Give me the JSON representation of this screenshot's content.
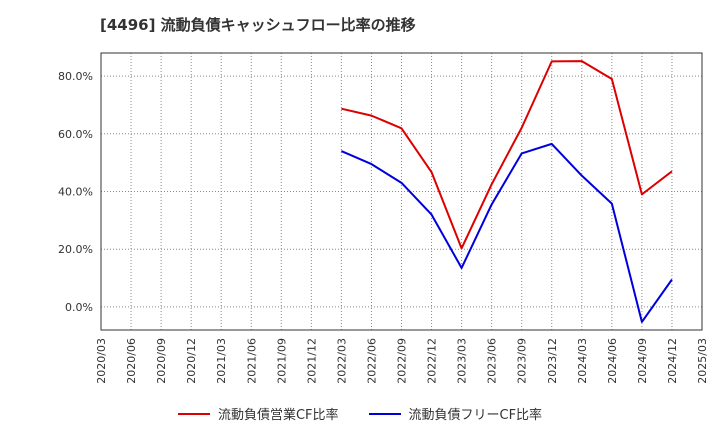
{
  "title": "[4496]  流動負債キャッシュフロー比率の推移",
  "chart_data": {
    "type": "line",
    "title": "[4496]  流動負債キャッシュフロー比率の推移",
    "xlabel": "",
    "ylabel": "",
    "x": [
      "2020/03",
      "2020/06",
      "2020/09",
      "2020/12",
      "2021/03",
      "2021/06",
      "2021/09",
      "2021/12",
      "2022/03",
      "2022/06",
      "2022/09",
      "2022/12",
      "2023/03",
      "2023/06",
      "2023/09",
      "2023/12",
      "2024/03",
      "2024/06",
      "2024/09",
      "2024/12",
      "2025/03"
    ],
    "y_ticks": [
      0,
      20,
      40,
      60,
      80
    ],
    "y_tick_labels": [
      "0.0%",
      "20.0%",
      "40.0%",
      "60.0%",
      "80.0%"
    ],
    "ylim": [
      -8,
      88
    ],
    "grid": true,
    "legend_position": "bottom",
    "series": [
      {
        "name": "流動負債営業CF比率",
        "color": "#dd0000",
        "values": [
          null,
          null,
          null,
          null,
          null,
          null,
          null,
          null,
          68.7,
          66.3,
          61.9,
          46.7,
          20.3,
          42.5,
          62.1,
          85.1,
          85.2,
          79.0,
          39.0,
          47.0,
          null
        ]
      },
      {
        "name": "流動負債フリーCF比率",
        "color": "#0000dd",
        "values": [
          null,
          null,
          null,
          null,
          null,
          null,
          null,
          null,
          54.0,
          49.5,
          43.0,
          32.0,
          13.5,
          35.5,
          53.2,
          56.5,
          45.5,
          35.8,
          -5.2,
          9.5,
          null
        ]
      }
    ]
  }
}
